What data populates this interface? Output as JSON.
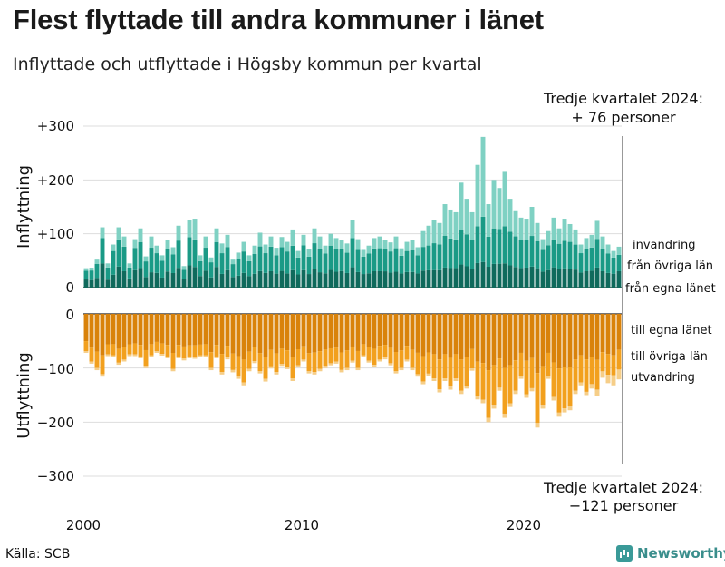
{
  "title": "Flest flyttade till andra kommuner i länet",
  "subtitle": "Inflyttade och utflyttade i Högsby kommun per kvartal",
  "source": "Källa: SCB",
  "brand": "Newsworthy",
  "colors": {
    "in_own": "#0f6a5c",
    "in_county": "#1a9a86",
    "in_immig": "#7fd1c3",
    "out_own": "#d9820a",
    "out_county": "#f2a01e",
    "out_emig": "#f6ce88",
    "grid": "#dddddd",
    "zero": "#222222"
  },
  "chart_data": {
    "type": "bar",
    "subtype": "stacked diverging",
    "x_start": 2000,
    "quarters": 99,
    "x_ticks": [
      "2000",
      "2010",
      "2020"
    ],
    "top_panel": {
      "ylabel": "Inflyttning",
      "y_ticks": [
        "+300",
        "+200",
        "+100",
        "0"
      ],
      "ylim": [
        0,
        300
      ],
      "annotation_line1": "Tredje kvartalet 2024:",
      "annotation_line2": "+ 76 personer",
      "series_labels": [
        "invandring",
        "från övriga län",
        "från egna länet"
      ],
      "totals": [
        36,
        37,
        52,
        112,
        45,
        80,
        112,
        95,
        45,
        90,
        110,
        58,
        95,
        78,
        60,
        88,
        75,
        115,
        40,
        125,
        128,
        60,
        95,
        56,
        110,
        82,
        98,
        52,
        65,
        85,
        60,
        78,
        102,
        80,
        95,
        74,
        94,
        85,
        108,
        68,
        98,
        72,
        110,
        95,
        78,
        100,
        92,
        88,
        82,
        126,
        90,
        70,
        78,
        92,
        95,
        89,
        84,
        95,
        73,
        85,
        88,
        75,
        105,
        115,
        125,
        120,
        155,
        145,
        140,
        195,
        165,
        140,
        228,
        280,
        155,
        200,
        185,
        215,
        165,
        142,
        130,
        128,
        150,
        120,
        90,
        105,
        130,
        110,
        128,
        118,
        108,
        80,
        92,
        98,
        124,
        95,
        80,
        68,
        76
      ],
      "own_share": [
        0.42,
        0.38,
        0.35,
        0.4,
        0.33,
        0.3,
        0.35,
        0.32,
        0.38,
        0.36,
        0.33,
        0.34,
        0.3,
        0.35,
        0.31,
        0.34,
        0.36,
        0.32,
        0.38,
        0.33,
        0.3,
        0.36,
        0.33,
        0.34,
        0.35,
        0.31,
        0.33,
        0.38,
        0.34,
        0.32,
        0.36,
        0.33,
        0.3,
        0.34,
        0.32,
        0.35,
        0.33,
        0.31,
        0.3,
        0.36,
        0.33,
        0.35,
        0.32,
        0.3,
        0.34,
        0.33,
        0.32,
        0.35,
        0.33,
        0.3,
        0.32,
        0.36,
        0.34,
        0.33,
        0.32,
        0.34,
        0.33,
        0.31,
        0.36,
        0.34,
        0.33,
        0.35,
        0.3,
        0.28,
        0.26,
        0.27,
        0.24,
        0.25,
        0.26,
        0.22,
        0.24,
        0.25,
        0.2,
        0.17,
        0.25,
        0.22,
        0.24,
        0.21,
        0.25,
        0.27,
        0.28,
        0.29,
        0.26,
        0.3,
        0.33,
        0.31,
        0.29,
        0.31,
        0.28,
        0.3,
        0.31,
        0.35,
        0.33,
        0.32,
        0.3,
        0.32,
        0.34,
        0.38,
        0.4
      ],
      "county_share": [
        0.45,
        0.48,
        0.5,
        0.42,
        0.5,
        0.55,
        0.45,
        0.48,
        0.45,
        0.46,
        0.44,
        0.5,
        0.48,
        0.47,
        0.52,
        0.48,
        0.46,
        0.44,
        0.45,
        0.42,
        0.4,
        0.46,
        0.45,
        0.5,
        0.42,
        0.47,
        0.44,
        0.46,
        0.48,
        0.47,
        0.46,
        0.47,
        0.45,
        0.46,
        0.48,
        0.46,
        0.47,
        0.48,
        0.42,
        0.46,
        0.47,
        0.45,
        0.43,
        0.45,
        0.47,
        0.45,
        0.46,
        0.47,
        0.46,
        0.43,
        0.46,
        0.46,
        0.47,
        0.46,
        0.45,
        0.46,
        0.47,
        0.46,
        0.45,
        0.46,
        0.46,
        0.45,
        0.42,
        0.4,
        0.4,
        0.4,
        0.38,
        0.38,
        0.38,
        0.33,
        0.36,
        0.38,
        0.3,
        0.3,
        0.36,
        0.33,
        0.35,
        0.32,
        0.38,
        0.4,
        0.4,
        0.4,
        0.38,
        0.42,
        0.45,
        0.44,
        0.4,
        0.43,
        0.4,
        0.42,
        0.43,
        0.45,
        0.44,
        0.44,
        0.43,
        0.44,
        0.45,
        0.44,
        0.4
      ]
    },
    "bottom_panel": {
      "ylabel": "Utflyttning",
      "y_ticks": [
        "0",
        "−100",
        "−200",
        "−300"
      ],
      "ylim": [
        -300,
        0
      ],
      "annotation_line1": "Tredje kvartalet 2024:",
      "annotation_line2": "−121 personer",
      "series_labels": [
        "till egna länet",
        "till övriga län",
        "utvandring"
      ],
      "totals": [
        72,
        92,
        104,
        116,
        78,
        80,
        94,
        88,
        78,
        78,
        82,
        100,
        80,
        72,
        77,
        82,
        106,
        82,
        86,
        82,
        83,
        80,
        80,
        104,
        82,
        112,
        84,
        108,
        120,
        132,
        106,
        91,
        110,
        125,
        101,
        112,
        96,
        102,
        124,
        99,
        88,
        110,
        112,
        106,
        100,
        95,
        92,
        108,
        104,
        90,
        104,
        80,
        90,
        98,
        88,
        84,
        95,
        110,
        104,
        88,
        104,
        116,
        130,
        115,
        124,
        145,
        124,
        140,
        124,
        148,
        138,
        105,
        158,
        165,
        200,
        175,
        142,
        192,
        172,
        148,
        120,
        155,
        143,
        210,
        175,
        120,
        160,
        190,
        182,
        178,
        148,
        132,
        150,
        138,
        152,
        118,
        128,
        132,
        121
      ],
      "own_share": [
        0.7,
        0.68,
        0.67,
        0.66,
        0.72,
        0.7,
        0.69,
        0.7,
        0.72,
        0.7,
        0.7,
        0.67,
        0.7,
        0.72,
        0.71,
        0.7,
        0.68,
        0.7,
        0.7,
        0.71,
        0.7,
        0.71,
        0.7,
        0.68,
        0.7,
        0.66,
        0.7,
        0.68,
        0.65,
        0.64,
        0.66,
        0.68,
        0.66,
        0.64,
        0.66,
        0.65,
        0.67,
        0.66,
        0.64,
        0.66,
        0.68,
        0.66,
        0.64,
        0.65,
        0.66,
        0.67,
        0.68,
        0.66,
        0.65,
        0.67,
        0.66,
        0.7,
        0.68,
        0.66,
        0.67,
        0.68,
        0.66,
        0.64,
        0.65,
        0.67,
        0.64,
        0.62,
        0.6,
        0.62,
        0.6,
        0.58,
        0.6,
        0.58,
        0.6,
        0.57,
        0.58,
        0.62,
        0.56,
        0.55,
        0.52,
        0.54,
        0.58,
        0.52,
        0.55,
        0.58,
        0.6,
        0.56,
        0.57,
        0.52,
        0.55,
        0.6,
        0.56,
        0.53,
        0.54,
        0.55,
        0.57,
        0.58,
        0.56,
        0.58,
        0.56,
        0.6,
        0.58,
        0.58,
        0.55
      ],
      "county_share": [
        0.26,
        0.28,
        0.29,
        0.3,
        0.24,
        0.26,
        0.27,
        0.26,
        0.24,
        0.26,
        0.26,
        0.29,
        0.26,
        0.24,
        0.25,
        0.26,
        0.28,
        0.26,
        0.26,
        0.25,
        0.26,
        0.25,
        0.26,
        0.28,
        0.26,
        0.3,
        0.26,
        0.28,
        0.31,
        0.32,
        0.3,
        0.28,
        0.3,
        0.32,
        0.3,
        0.31,
        0.29,
        0.3,
        0.32,
        0.3,
        0.28,
        0.3,
        0.32,
        0.31,
        0.3,
        0.29,
        0.28,
        0.3,
        0.31,
        0.29,
        0.3,
        0.26,
        0.28,
        0.3,
        0.29,
        0.28,
        0.3,
        0.32,
        0.31,
        0.29,
        0.32,
        0.34,
        0.36,
        0.34,
        0.36,
        0.38,
        0.36,
        0.38,
        0.36,
        0.39,
        0.38,
        0.34,
        0.4,
        0.41,
        0.44,
        0.42,
        0.38,
        0.44,
        0.41,
        0.38,
        0.36,
        0.4,
        0.39,
        0.44,
        0.41,
        0.36,
        0.4,
        0.43,
        0.42,
        0.41,
        0.39,
        0.38,
        0.4,
        0.36,
        0.36,
        0.3,
        0.3,
        0.28,
        0.3
      ]
    }
  }
}
